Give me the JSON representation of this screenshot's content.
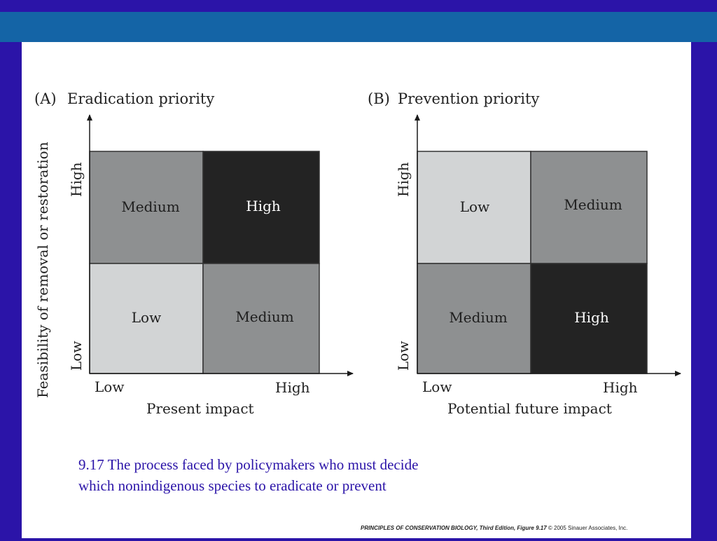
{
  "colors": {
    "background": "#2b14a8",
    "band": "#1464a6",
    "low": "#d2d4d5",
    "medium": "#8e9091",
    "high": "#232323",
    "caption": "#2b14a8"
  },
  "panel_a": {
    "label": "(A)",
    "title": "Eradication priority",
    "y_axis_label": "Feasibility of removal or restoration",
    "y_high": "High",
    "y_low": "Low",
    "x_low": "Low",
    "x_high": "High",
    "x_axis_label": "Present impact",
    "cells": {
      "top_left": {
        "label": "Medium",
        "level": "medium"
      },
      "top_right": {
        "label": "High",
        "level": "high"
      },
      "bottom_left": {
        "label": "Low",
        "level": "low"
      },
      "bottom_right": {
        "label": "Medium",
        "level": "medium"
      }
    }
  },
  "panel_b": {
    "label": "(B)",
    "title": "Prevention priority",
    "y_high": "High",
    "y_low": "Low",
    "x_low": "Low",
    "x_high": "High",
    "x_axis_label": "Potential future impact",
    "cells": {
      "top_left": {
        "label": "Low",
        "level": "low"
      },
      "top_right": {
        "label": "Medium",
        "level": "medium"
      },
      "bottom_left": {
        "label": "Medium",
        "level": "medium"
      },
      "bottom_right": {
        "label": "High",
        "level": "high"
      }
    }
  },
  "caption": {
    "line1": "9.17  The process faced by policymakers who must decide",
    "line2": "which nonindigenous species to eradicate or prevent"
  },
  "credit": {
    "book": "PRINCIPLES OF CONSERVATION BIOLOGY, Third Edition, Figure 9.17",
    "copyright": "© 2005 Sinauer Associates, Inc."
  }
}
